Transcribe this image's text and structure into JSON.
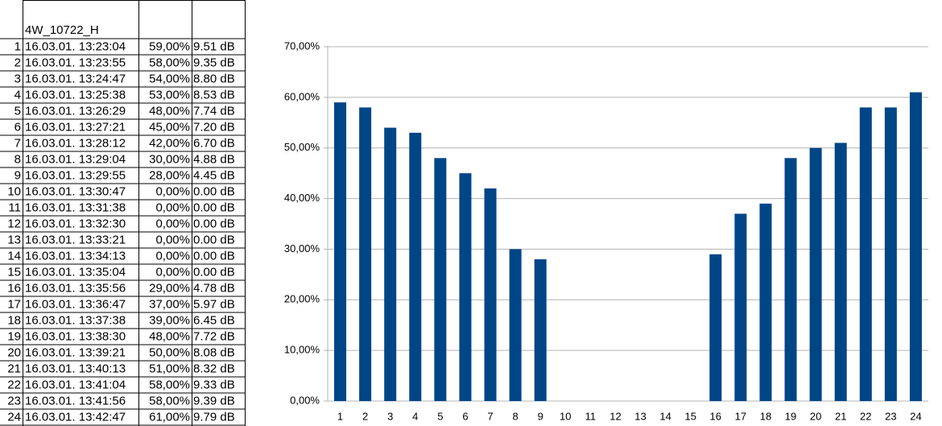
{
  "table": {
    "header": "4W_10722_H",
    "rows": [
      [
        "1",
        "16.03.01. 13:23:04",
        "59,00%",
        "9.51 dB"
      ],
      [
        "2",
        "16.03.01. 13:23:55",
        "58,00%",
        "9.35 dB"
      ],
      [
        "3",
        "16.03.01. 13:24:47",
        "54,00%",
        "8.80 dB"
      ],
      [
        "4",
        "16.03.01. 13:25:38",
        "53,00%",
        "8.53 dB"
      ],
      [
        "5",
        "16.03.01. 13:26:29",
        "48,00%",
        "7.74 dB"
      ],
      [
        "6",
        "16.03.01. 13:27:21",
        "45,00%",
        "7.20 dB"
      ],
      [
        "7",
        "16.03.01. 13:28:12",
        "42,00%",
        "6.70 dB"
      ],
      [
        "8",
        "16.03.01. 13:29:04",
        "30,00%",
        "4.88 dB"
      ],
      [
        "9",
        "16.03.01. 13:29:55",
        "28,00%",
        "4.45 dB"
      ],
      [
        "10",
        "16.03.01. 13:30:47",
        "0,00%",
        "0.00 dB"
      ],
      [
        "11",
        "16.03.01. 13:31:38",
        "0,00%",
        "0.00 dB"
      ],
      [
        "12",
        "16.03.01. 13:32:30",
        "0,00%",
        "0.00 dB"
      ],
      [
        "13",
        "16.03.01. 13:33:21",
        "0,00%",
        "0.00 dB"
      ],
      [
        "14",
        "16.03.01. 13:34:13",
        "0,00%",
        "0.00 dB"
      ],
      [
        "15",
        "16.03.01. 13:35:04",
        "0,00%",
        "0.00 dB"
      ],
      [
        "16",
        "16.03.01. 13:35:56",
        "29,00%",
        "4.78 dB"
      ],
      [
        "17",
        "16.03.01. 13:36:47",
        "37,00%",
        "5.97 dB"
      ],
      [
        "18",
        "16.03.01. 13:37:38",
        "39,00%",
        "6.45 dB"
      ],
      [
        "19",
        "16.03.01. 13:38:30",
        "48,00%",
        "7.72 dB"
      ],
      [
        "20",
        "16.03.01. 13:39:21",
        "50,00%",
        "8.08 dB"
      ],
      [
        "21",
        "16.03.01. 13:40:13",
        "51,00%",
        "8.32 dB"
      ],
      [
        "22",
        "16.03.01. 13:41:04",
        "58,00%",
        "9.33 dB"
      ],
      [
        "23",
        "16.03.01. 13:41:56",
        "58,00%",
        "9.39 dB"
      ],
      [
        "24",
        "16.03.01. 13:42:47",
        "61,00%",
        "9.79 dB"
      ]
    ]
  },
  "chart_data": {
    "type": "bar",
    "categories": [
      "1",
      "2",
      "3",
      "4",
      "5",
      "6",
      "7",
      "8",
      "9",
      "10",
      "11",
      "12",
      "13",
      "14",
      "15",
      "16",
      "17",
      "18",
      "19",
      "20",
      "21",
      "22",
      "23",
      "24"
    ],
    "values": [
      59,
      58,
      54,
      53,
      48,
      45,
      42,
      30,
      28,
      0,
      0,
      0,
      0,
      0,
      0,
      29,
      37,
      39,
      48,
      50,
      51,
      58,
      58,
      61
    ],
    "color": "#004586",
    "ylim": [
      0,
      70
    ],
    "yticks": [
      {
        "value": 0,
        "label": "0,00%"
      },
      {
        "value": 10,
        "label": "10,00%"
      },
      {
        "value": 20,
        "label": "20,00%"
      },
      {
        "value": 30,
        "label": "30,00%"
      },
      {
        "value": 40,
        "label": "40,00%"
      },
      {
        "value": 50,
        "label": "50,00%"
      },
      {
        "value": 60,
        "label": "60,00%"
      },
      {
        "value": 70,
        "label": "70,00%"
      }
    ],
    "grid": true
  }
}
